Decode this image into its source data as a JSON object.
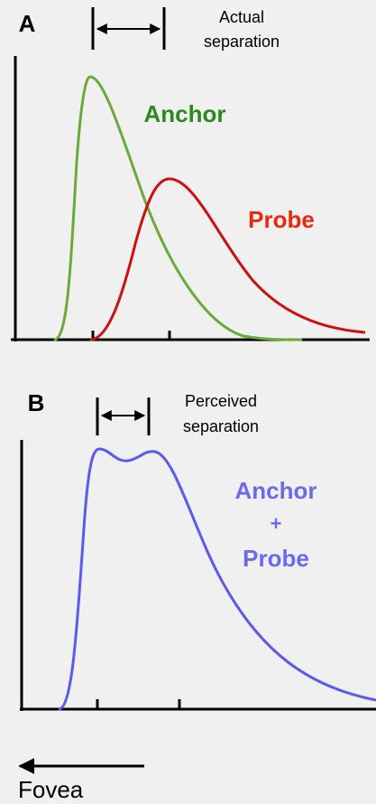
{
  "panel_a": {
    "label": "A",
    "separation_label": [
      "Actual",
      "separation"
    ],
    "curves": [
      "Anchor",
      "Probe"
    ]
  },
  "panel_b": {
    "label": "B",
    "separation_label": [
      "Perceived",
      "separation"
    ],
    "curve_label": [
      "Anchor",
      "+",
      "Probe"
    ]
  },
  "direction_label": "Fovea"
}
